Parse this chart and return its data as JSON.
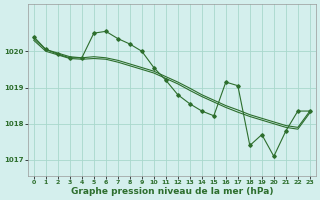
{
  "background_color": "#d4efed",
  "grid_color": "#a8d8cc",
  "line_color": "#2d6e2d",
  "marker_color": "#2d6e2d",
  "xlabel": "Graphe pression niveau de la mer (hPa)",
  "xlabel_fontsize": 6.5,
  "xticks": [
    0,
    1,
    2,
    3,
    4,
    5,
    6,
    7,
    8,
    9,
    10,
    11,
    12,
    13,
    14,
    15,
    16,
    17,
    18,
    19,
    20,
    21,
    22,
    23
  ],
  "yticks": [
    1017,
    1018,
    1019,
    1020
  ],
  "ylim": [
    1016.55,
    1021.3
  ],
  "xlim": [
    -0.5,
    23.5
  ],
  "series1": [
    1020.35,
    1020.05,
    1019.95,
    1019.85,
    1019.82,
    1019.85,
    1019.82,
    1019.75,
    1019.65,
    1019.55,
    1019.45,
    1019.3,
    1019.15,
    1018.98,
    1018.8,
    1018.65,
    1018.5,
    1018.38,
    1018.25,
    1018.15,
    1018.05,
    1017.95,
    1017.9,
    1018.35
  ],
  "series2": [
    1020.3,
    1020.0,
    1019.9,
    1019.8,
    1019.78,
    1019.8,
    1019.78,
    1019.7,
    1019.6,
    1019.5,
    1019.4,
    1019.25,
    1019.1,
    1018.92,
    1018.75,
    1018.6,
    1018.45,
    1018.32,
    1018.2,
    1018.1,
    1018.0,
    1017.9,
    1017.85,
    1018.3
  ],
  "series3": [
    1020.4,
    1020.05,
    1019.92,
    1019.82,
    1019.82,
    1020.5,
    1020.55,
    1020.35,
    1020.2,
    1020.0,
    1019.55,
    1019.2,
    1018.8,
    1018.55,
    1018.35,
    1018.22,
    1019.15,
    1019.05,
    1017.4,
    1017.7,
    1017.1,
    1017.8,
    1018.35,
    1018.35
  ],
  "series3_markers": [
    1020.4,
    1020.05,
    1019.92,
    1019.82,
    1019.82,
    1020.5,
    1020.55,
    1020.35,
    1020.2,
    1020.0,
    1019.55,
    1019.2,
    1018.8,
    1018.55,
    1018.35,
    1018.22,
    1019.15,
    1019.05,
    1017.4,
    1017.7,
    1017.1,
    1017.8,
    1018.35,
    1018.35
  ]
}
